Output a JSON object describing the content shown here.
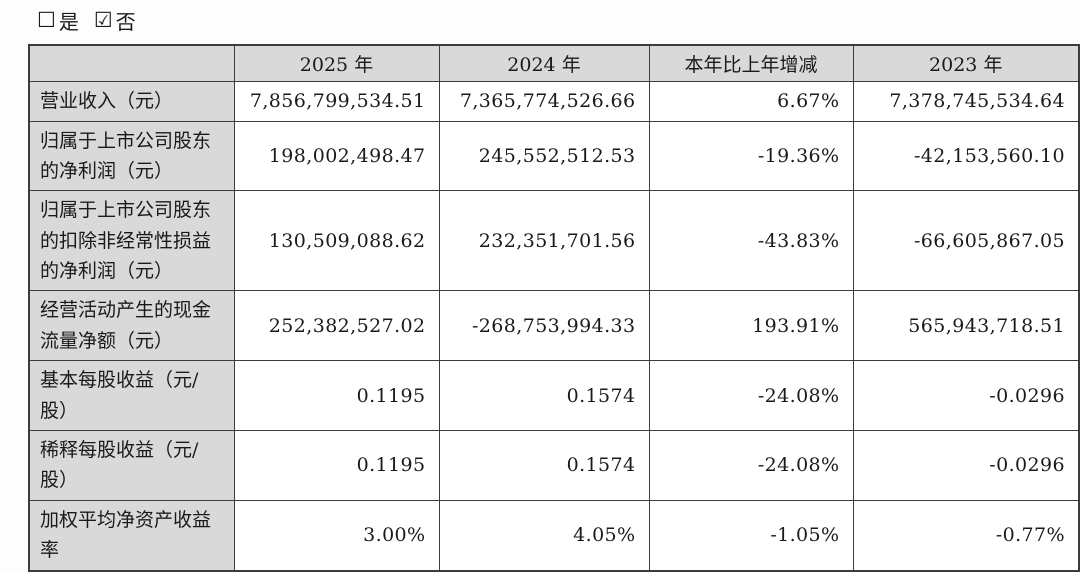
{
  "options": {
    "yes": {
      "symbol": "☐",
      "label": "是",
      "checked": false
    },
    "no": {
      "symbol": "☑",
      "label": "否",
      "checked": true
    }
  },
  "colors": {
    "header_bg": "#d9d9d9",
    "label_column_bg": "#d9d9d9",
    "cell_bg": "#ffffff",
    "border": "#3c3c3c",
    "text": "#1a1a1a"
  },
  "table": {
    "header": [
      "",
      "2025 年",
      "2024 年",
      "本年比上年增减",
      "2023 年"
    ],
    "rows": [
      {
        "cells": [
          "营业收入（元）",
          "7,856,799,534.51",
          "7,365,774,526.66",
          "6.67%",
          "7,378,745,534.64"
        ]
      },
      {
        "cells": [
          "归属于上市公司股东的净利润（元）",
          "198,002,498.47",
          "245,552,512.53",
          "-19.36%",
          "-42,153,560.10"
        ]
      },
      {
        "cells": [
          "归属于上市公司股东的扣除非经常性损益的净利润（元）",
          "130,509,088.62",
          "232,351,701.56",
          "-43.83%",
          "-66,605,867.05"
        ]
      },
      {
        "cells": [
          "经营活动产生的现金流量净额（元）",
          "252,382,527.02",
          "-268,753,994.33",
          "193.91%",
          "565,943,718.51"
        ]
      },
      {
        "cells": [
          "基本每股收益（元/股）",
          "0.1195",
          "0.1574",
          "-24.08%",
          "-0.0296"
        ]
      },
      {
        "cells": [
          "稀释每股收益（元/股）",
          "0.1195",
          "0.1574",
          "-24.08%",
          "-0.0296"
        ]
      },
      {
        "cells": [
          "加权平均净资产收益率",
          "3.00%",
          "4.05%",
          "-1.05%",
          "-0.77%"
        ]
      }
    ]
  }
}
